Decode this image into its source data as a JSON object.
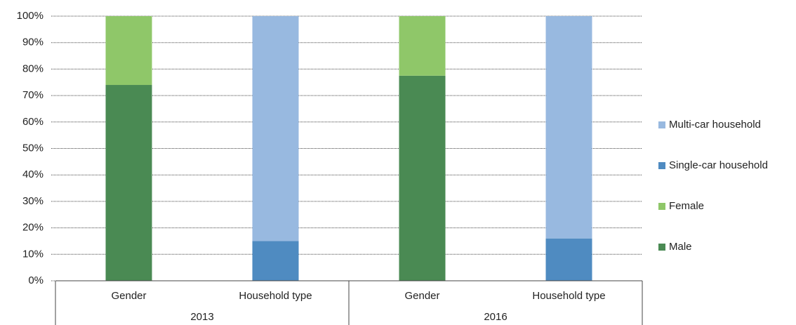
{
  "chart_data": {
    "type": "stacked_bar",
    "groups": [
      {
        "label": "2013",
        "categories": [
          "Gender",
          "Household type"
        ]
      },
      {
        "label": "2016",
        "categories": [
          "Gender",
          "Household type"
        ]
      }
    ],
    "series": [
      {
        "name": "Male",
        "color": "#4a8a53",
        "values": [
          74,
          null,
          77.5,
          null
        ]
      },
      {
        "name": "Female",
        "color": "#8fc769",
        "values": [
          26,
          null,
          22.5,
          null
        ]
      },
      {
        "name": "Single-car household",
        "color": "#4f8bc1",
        "values": [
          null,
          15,
          null,
          16
        ]
      },
      {
        "name": "Multi-car household",
        "color": "#98b9e0",
        "values": [
          null,
          85,
          null,
          84
        ]
      }
    ],
    "ylim": [
      0,
      100
    ],
    "yticks": [
      {
        "value": 0,
        "label": "0%"
      },
      {
        "value": 10,
        "label": "10%"
      },
      {
        "value": 20,
        "label": "20%"
      },
      {
        "value": 30,
        "label": "30%"
      },
      {
        "value": 40,
        "label": "40%"
      },
      {
        "value": 50,
        "label": "50%"
      },
      {
        "value": 60,
        "label": "60%"
      },
      {
        "value": 70,
        "label": "70%"
      },
      {
        "value": 80,
        "label": "80%"
      },
      {
        "value": 90,
        "label": "90%"
      },
      {
        "value": 100,
        "label": "100%"
      }
    ],
    "grid": true,
    "legend": "right"
  }
}
